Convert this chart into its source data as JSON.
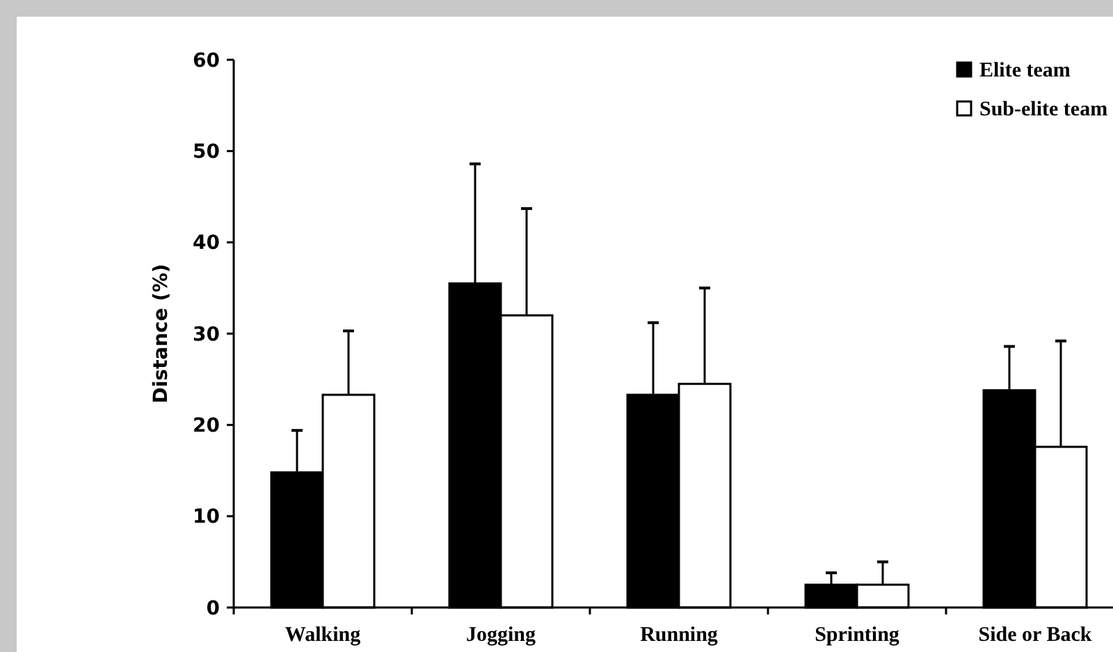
{
  "chart_data": {
    "type": "bar",
    "ylabel": "Distance (%)",
    "categories": [
      "Walking",
      "Jogging",
      "Running",
      "Sprinting",
      "Side or Back"
    ],
    "series": [
      {
        "name": "Elite team",
        "color": "#000000",
        "values": [
          14.8,
          35.5,
          23.3,
          2.5,
          23.8
        ],
        "errors": [
          [
            14.8,
            19.4
          ],
          [
            35.5,
            48.6
          ],
          [
            23.3,
            31.2
          ],
          [
            2.5,
            3.8
          ],
          [
            23.8,
            28.6
          ]
        ]
      },
      {
        "name": "Sub-elite team",
        "color": "#ffffff",
        "values": [
          23.3,
          32,
          24.5,
          2.5,
          17.6
        ],
        "errors": [
          [
            23.3,
            30.3
          ],
          [
            32,
            43.7
          ],
          [
            24.5,
            35
          ],
          [
            2.5,
            5
          ],
          [
            17.6,
            29.2
          ]
        ]
      }
    ],
    "ylim": [
      0,
      60
    ],
    "yticks": [
      0,
      10,
      20,
      30,
      40,
      50,
      60
    ],
    "grid": false,
    "legend": "top right"
  }
}
